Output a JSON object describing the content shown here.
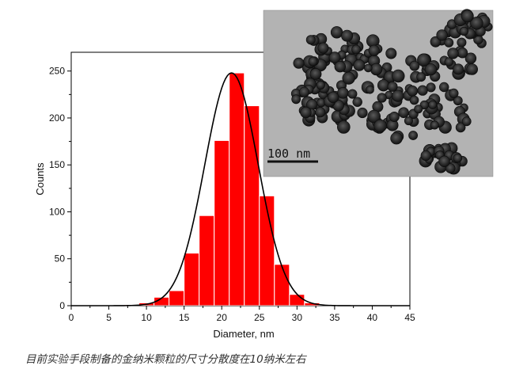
{
  "chart_data": {
    "type": "bar",
    "title": "",
    "xlabel": "Diameter, nm",
    "ylabel": "Counts",
    "xlim": [
      0,
      45
    ],
    "ylim": [
      0,
      270
    ],
    "x_ticks": [
      0,
      5,
      10,
      15,
      20,
      25,
      30,
      35,
      40,
      45
    ],
    "y_ticks": [
      0,
      50,
      100,
      150,
      200,
      250
    ],
    "bin_width": 2,
    "bin_centers": [
      6,
      8,
      10,
      12,
      14,
      16,
      18,
      20,
      22,
      24,
      26,
      28,
      30,
      32,
      34,
      36
    ],
    "values": [
      0,
      1,
      3,
      9,
      16,
      56,
      96,
      176,
      248,
      213,
      117,
      44,
      12,
      3,
      1,
      0
    ],
    "fit_curve": {
      "type": "gaussian",
      "center": 21.3,
      "sigma": 3.55,
      "peak": 248
    },
    "bar_color": "#ff0000",
    "curve_color": "#000000",
    "grid": false,
    "legend": "none"
  },
  "inset": {
    "scale_bar_label": "100 nm"
  },
  "caption": "目前实验手段制备的金纳米颗粒的尺寸分散度在10纳米左右"
}
